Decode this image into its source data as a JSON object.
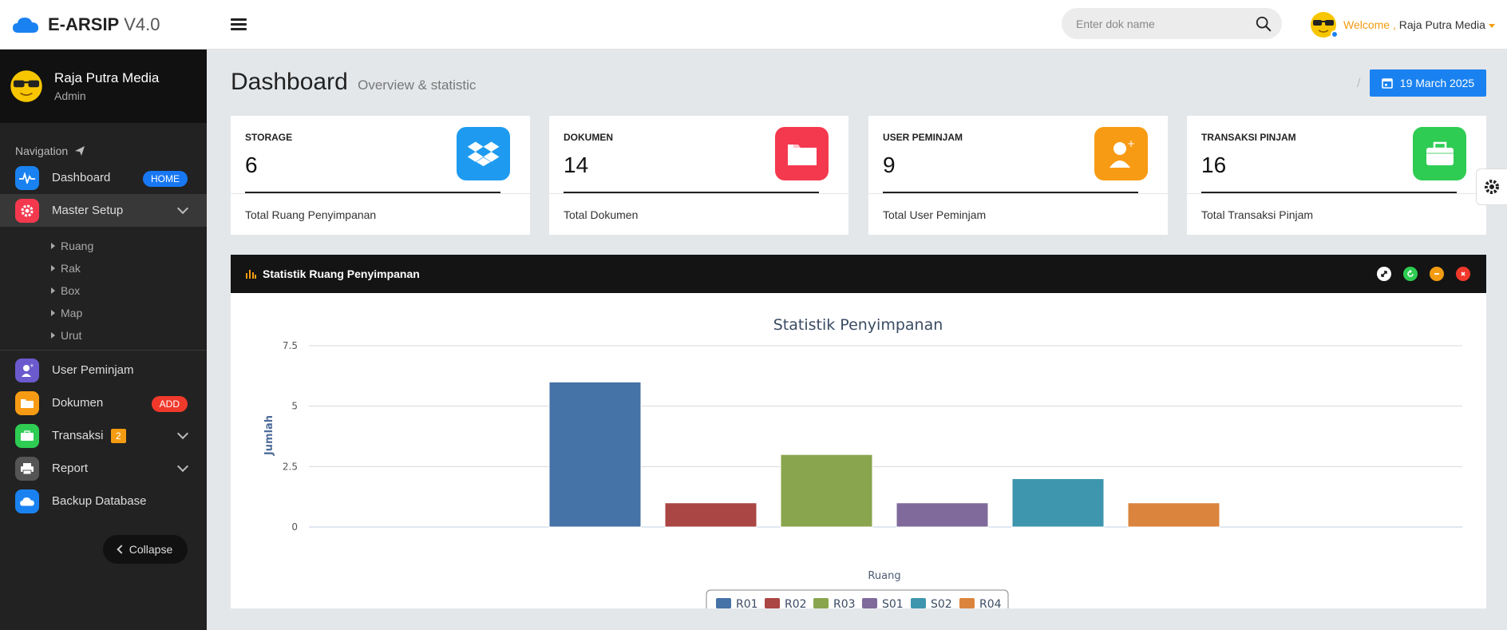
{
  "app": {
    "name": "E-ARSIP",
    "version": "V4.0"
  },
  "search": {
    "placeholder": "Enter dok name"
  },
  "header_user": {
    "welcome": "Welcome ,",
    "name": "Raja Putra Media"
  },
  "profile": {
    "name": "Raja Putra Media",
    "role": "Admin"
  },
  "nav": {
    "title": "Navigation",
    "dashboard": {
      "label": "Dashboard",
      "badge": "HOME"
    },
    "master_setup": {
      "label": "Master Setup",
      "sub": [
        "Ruang",
        "Rak",
        "Box",
        "Map",
        "Urut"
      ]
    },
    "user_peminjam": {
      "label": "User Peminjam"
    },
    "dokumen": {
      "label": "Dokumen",
      "badge": "ADD"
    },
    "transaksi": {
      "label": "Transaksi",
      "badge": "2"
    },
    "report": {
      "label": "Report"
    },
    "backup": {
      "label": "Backup Database"
    },
    "collapse": "Collapse"
  },
  "page": {
    "title": "Dashboard",
    "subtitle": "Overview & statistic",
    "date": "19 March 2025"
  },
  "cards": [
    {
      "label": "STORAGE",
      "value": "6",
      "foot": "Total Ruang Penyimpanan",
      "color": "#1e9bf0"
    },
    {
      "label": "DOKUMEN",
      "value": "14",
      "foot": "Total Dokumen",
      "color": "#f4394e"
    },
    {
      "label": "USER PEMINJAM",
      "value": "9",
      "foot": "Total User Peminjam",
      "color": "#f89b14"
    },
    {
      "label": "TRANSAKSI PINJAM",
      "value": "16",
      "foot": "Total Transaksi Pinjam",
      "color": "#2ecc52"
    }
  ],
  "panel": {
    "title": "Statistik Ruang Penyimpanan"
  },
  "chart_data": {
    "type": "bar",
    "title": "Statistik Penyimpanan",
    "xlabel": "Ruang",
    "ylabel": "Jumlah",
    "ylim": [
      0,
      7.5
    ],
    "yticks": [
      "0",
      "2.5",
      "5",
      "7.5"
    ],
    "legend_position": "bottom-center",
    "grid": true,
    "series": [
      {
        "name": "R01",
        "value": 6,
        "color": "#4572a7"
      },
      {
        "name": "R02",
        "value": 1,
        "color": "#aa4643"
      },
      {
        "name": "R03",
        "value": 3,
        "color": "#89a54e"
      },
      {
        "name": "S01",
        "value": 1,
        "color": "#80699b"
      },
      {
        "name": "S02",
        "value": 2,
        "color": "#3d96ae"
      },
      {
        "name": "R04",
        "value": 1,
        "color": "#db843d"
      }
    ]
  }
}
